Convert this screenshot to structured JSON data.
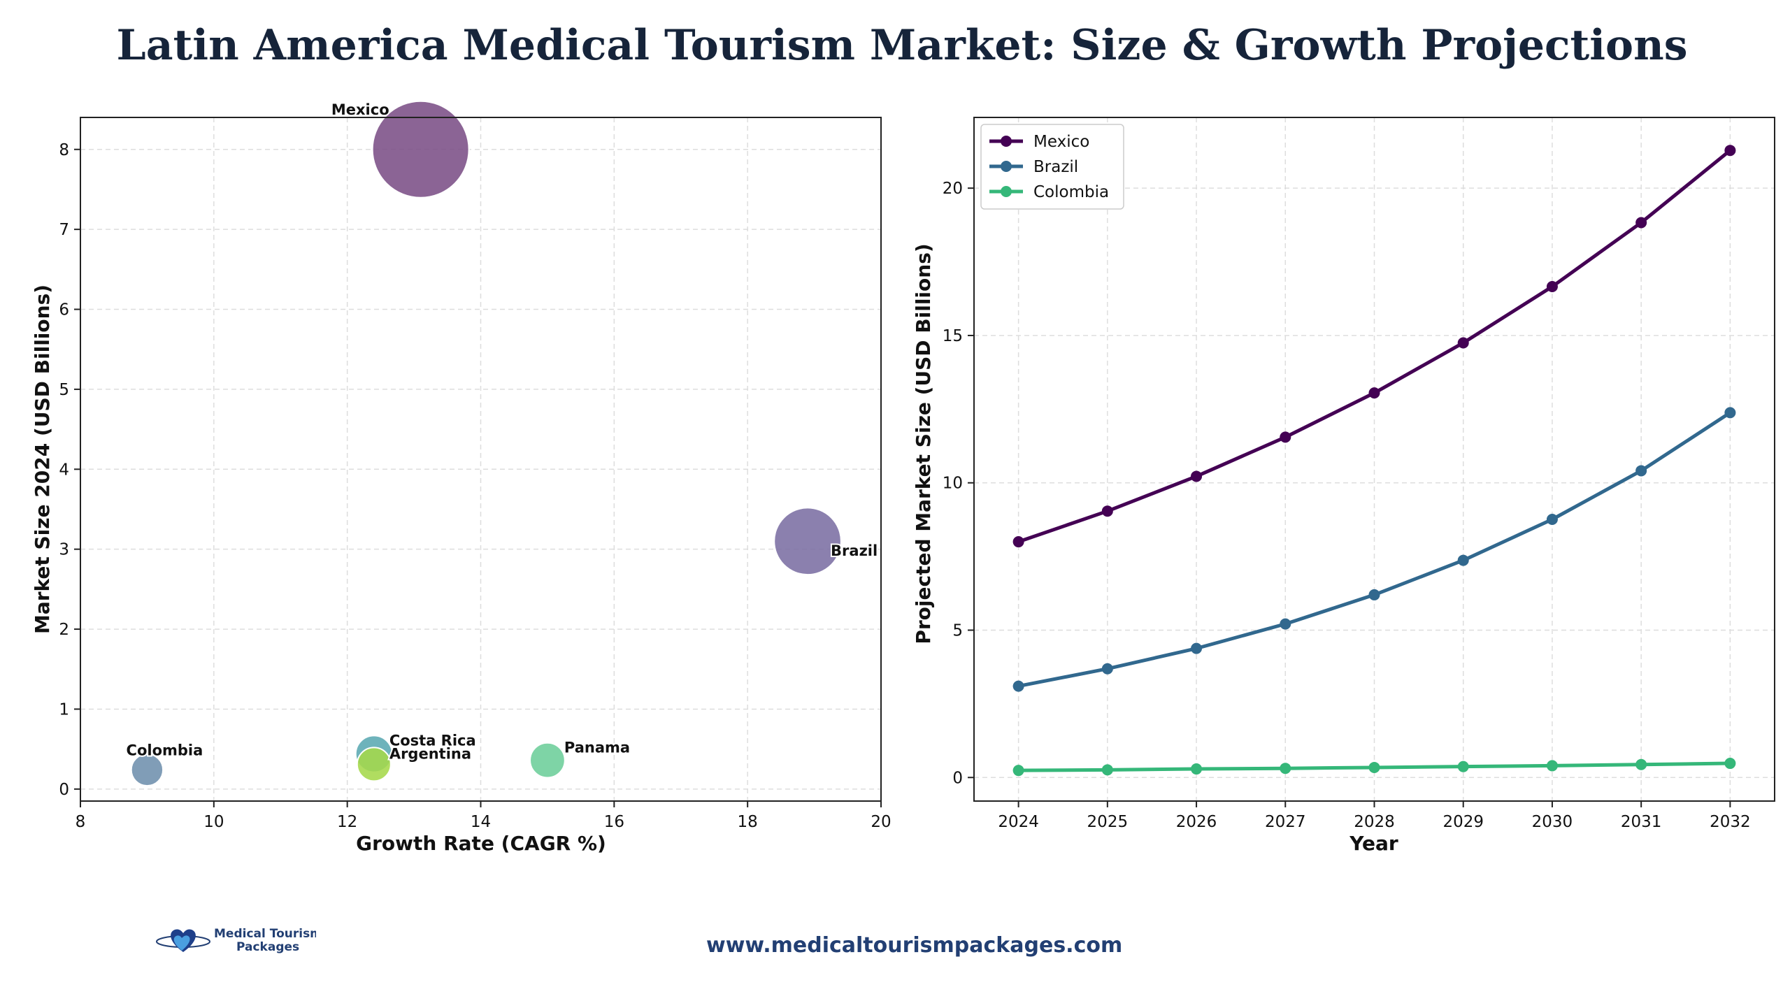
{
  "page": {
    "title": "Latin America Medical Tourism Market: Size & Growth Projections",
    "footer_url": "www.medicaltourismpackages.com",
    "logo_line1": "Medical Tourism",
    "logo_line2": "Packages"
  },
  "chart_data": [
    {
      "type": "scatter",
      "subtype": "bubble",
      "title": "",
      "xlabel": "Growth Rate (CAGR %)",
      "ylabel": "Market Size 2024 (USD Billions)",
      "xlim": [
        8,
        20
      ],
      "ylim": [
        -0.15,
        8.4
      ],
      "xticks": [
        8,
        10,
        12,
        14,
        16,
        18,
        20
      ],
      "yticks": [
        0,
        1,
        2,
        3,
        4,
        5,
        6,
        7,
        8
      ],
      "grid": true,
      "points": [
        {
          "label": "Mexico",
          "x": 13.1,
          "y": 8.0,
          "color": "#7b4f86"
        },
        {
          "label": "Brazil",
          "x": 18.9,
          "y": 3.1,
          "color": "#7b6ea3"
        },
        {
          "label": "Colombia",
          "x": 9.0,
          "y": 0.24,
          "color": "#6e90ad"
        },
        {
          "label": "Costa Rica",
          "x": 12.4,
          "y": 0.44,
          "color": "#5aa8b2"
        },
        {
          "label": "Argentina",
          "x": 12.4,
          "y": 0.31,
          "color": "#a5d84a"
        },
        {
          "label": "Panama",
          "x": 15.0,
          "y": 0.36,
          "color": "#6cce9a"
        }
      ]
    },
    {
      "type": "line",
      "title": "",
      "xlabel": "Year",
      "ylabel": "Projected Market Size (USD Billions)",
      "x": [
        2024,
        2025,
        2026,
        2027,
        2028,
        2029,
        2030,
        2031,
        2032
      ],
      "xlim": [
        2023.5,
        2032.5
      ],
      "ylim": [
        -0.8,
        22.4
      ],
      "yticks": [
        0,
        5,
        10,
        15,
        20
      ],
      "grid": true,
      "legend": "top-left",
      "series": [
        {
          "name": "Mexico",
          "color": "#440154",
          "values": [
            8.0,
            9.04,
            10.22,
            11.55,
            13.05,
            14.75,
            16.66,
            18.83,
            21.28
          ]
        },
        {
          "name": "Brazil",
          "color": "#31688e",
          "values": [
            3.1,
            3.69,
            4.38,
            5.21,
            6.2,
            7.37,
            8.76,
            10.41,
            12.38
          ]
        },
        {
          "name": "Colombia",
          "color": "#35b779",
          "values": [
            0.24,
            0.26,
            0.29,
            0.31,
            0.34,
            0.37,
            0.4,
            0.44,
            0.48
          ]
        }
      ]
    }
  ]
}
